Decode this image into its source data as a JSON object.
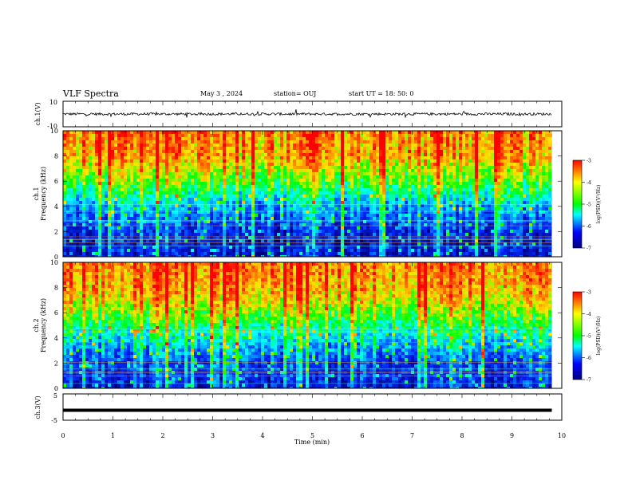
{
  "header": {
    "title": "VLF Spectra",
    "date": "May 3 , 2024",
    "station": "station= OUJ",
    "start": "start  UT  =   18: 50: 0"
  },
  "colorbar": {
    "label": "log(PSD)(V²/Hz)",
    "ticks": [
      {
        "value": -3,
        "label": "-3"
      },
      {
        "value": -4,
        "label": "-4"
      },
      {
        "value": -5,
        "label": "-5"
      },
      {
        "value": -6,
        "label": "-6"
      },
      {
        "value": -7,
        "label": "-7"
      }
    ],
    "stops": [
      "#ff0000",
      "#ffff00",
      "#00ff00",
      "#00ffff",
      "#0000ff",
      "#000080"
    ]
  },
  "chart_data": [
    {
      "type": "line",
      "ylabel": "ch.1(V)",
      "ylim": [
        -10,
        10
      ],
      "yticks": [
        "10",
        "-10"
      ],
      "xlim": [
        0,
        10
      ],
      "mean_value": 0,
      "approx_amplitude": 2
    },
    {
      "type": "heatmap",
      "ylabel": "ch.1",
      "ylabel2": "Frequency (kHz)",
      "xlim": [
        0,
        10
      ],
      "ylim": [
        0,
        10
      ],
      "yticks": [
        "0",
        "2",
        "4",
        "6",
        "8",
        "10"
      ],
      "data_end_min": 9.8,
      "approx_log_psd_profile": [
        {
          "freq_khz": 0,
          "log_psd": -6.5
        },
        {
          "freq_khz": 2,
          "log_psd": -6.3
        },
        {
          "freq_khz": 4,
          "log_psd": -5.6
        },
        {
          "freq_khz": 5,
          "log_psd": -5.0
        },
        {
          "freq_khz": 6,
          "log_psd": -4.5
        },
        {
          "freq_khz": 7,
          "log_psd": -4.1
        },
        {
          "freq_khz": 8,
          "log_psd": -3.7
        },
        {
          "freq_khz": 10,
          "log_psd": -3.5
        }
      ]
    },
    {
      "type": "heatmap",
      "ylabel": "ch.2",
      "ylabel2": "Frequency (kHz)",
      "xlim": [
        0,
        10
      ],
      "ylim": [
        0,
        10
      ],
      "yticks": [
        "0",
        "2",
        "4",
        "6",
        "8",
        "10"
      ],
      "data_end_min": 9.8,
      "approx_log_psd_profile": [
        {
          "freq_khz": 0,
          "log_psd": -6.4
        },
        {
          "freq_khz": 2,
          "log_psd": -6.1
        },
        {
          "freq_khz": 4,
          "log_psd": -5.3
        },
        {
          "freq_khz": 5,
          "log_psd": -4.9
        },
        {
          "freq_khz": 6,
          "log_psd": -4.4
        },
        {
          "freq_khz": 7,
          "log_psd": -4.0
        },
        {
          "freq_khz": 8,
          "log_psd": -3.7
        },
        {
          "freq_khz": 10,
          "log_psd": -3.5
        }
      ]
    },
    {
      "type": "line",
      "ylabel": "ch.3(V)",
      "ylim": [
        -5,
        5
      ],
      "yticks": [
        "5",
        "-5"
      ],
      "xlim": [
        0,
        10
      ],
      "xlabel": "Time  (min)",
      "xticks": [
        "0",
        "1",
        "2",
        "3",
        "4",
        "5",
        "6",
        "7",
        "8",
        "9",
        "10"
      ],
      "constant_value": -1.2
    }
  ]
}
